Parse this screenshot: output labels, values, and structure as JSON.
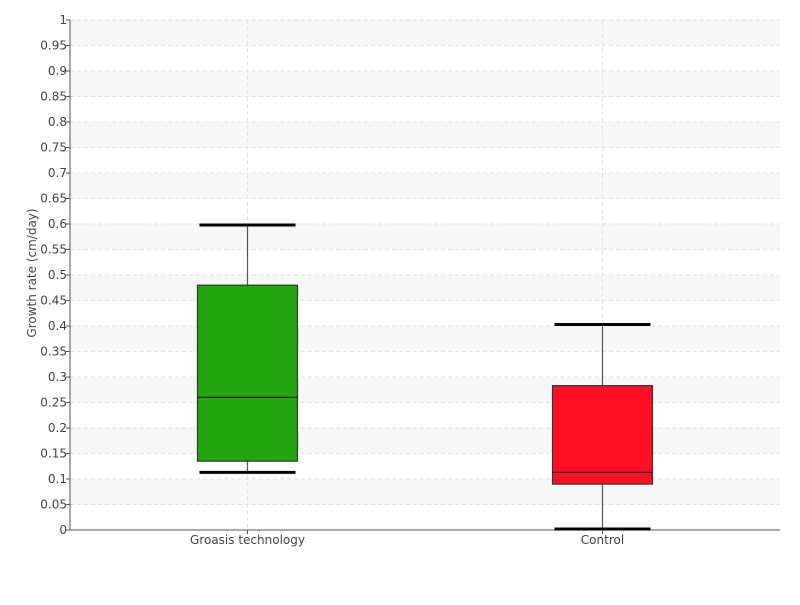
{
  "chart_data": {
    "type": "box",
    "title": "",
    "xlabel": "",
    "ylabel": "Growth rate (cm/day)",
    "ylim": [
      0,
      1
    ],
    "yticks": [
      "0",
      "0.05",
      "0.1",
      "0.15",
      "0.2",
      "0.25",
      "0.3",
      "0.35",
      "0.4",
      "0.45",
      "0.5",
      "0.55",
      "0.6",
      "0.65",
      "0.7",
      "0.75",
      "0.8",
      "0.85",
      "0.9",
      "0.95",
      "1"
    ],
    "categories": [
      "Groasis technology",
      "Control"
    ],
    "boxes": [
      {
        "category": "Groasis technology",
        "min": 0.113,
        "q1": 0.135,
        "median": 0.26,
        "q3": 0.48,
        "max": 0.598,
        "color": "#22a50f"
      },
      {
        "category": "Control",
        "min": 0.002,
        "q1": 0.09,
        "median": 0.113,
        "q3": 0.283,
        "max": 0.403,
        "color": "#ff0f26"
      }
    ],
    "grid": true,
    "legend": "none"
  }
}
